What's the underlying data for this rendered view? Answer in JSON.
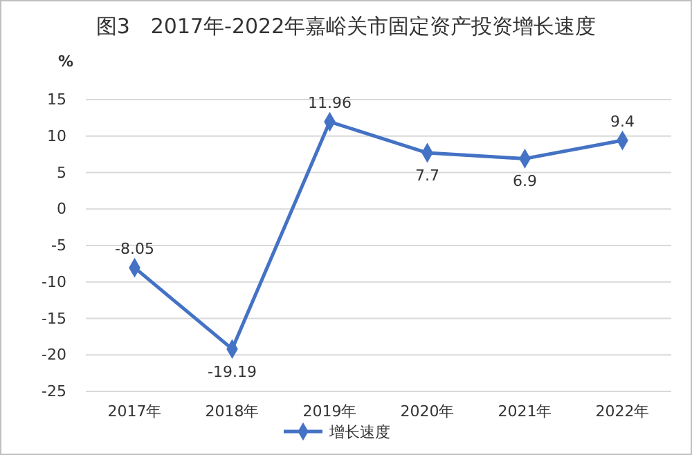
{
  "chart_data": {
    "type": "line",
    "title": "图3　2017年-2022年嘉峪关市固定资产投资增长速度",
    "ylabel": "%",
    "categories": [
      "2017年",
      "2018年",
      "2019年",
      "2020年",
      "2021年",
      "2022年"
    ],
    "series": [
      {
        "name": "增长速度",
        "color": "#4472c4",
        "values": [
          -8.05,
          -19.19,
          11.96,
          7.7,
          6.9,
          9.4
        ]
      }
    ],
    "ylim": [
      -25,
      15
    ],
    "yticks": [
      -25,
      -20,
      -15,
      -10,
      -5,
      0,
      5,
      10,
      15
    ],
    "grid": "y",
    "legend": "bottom",
    "marker": "diamond",
    "line_style": "solid",
    "data_labels": true
  }
}
